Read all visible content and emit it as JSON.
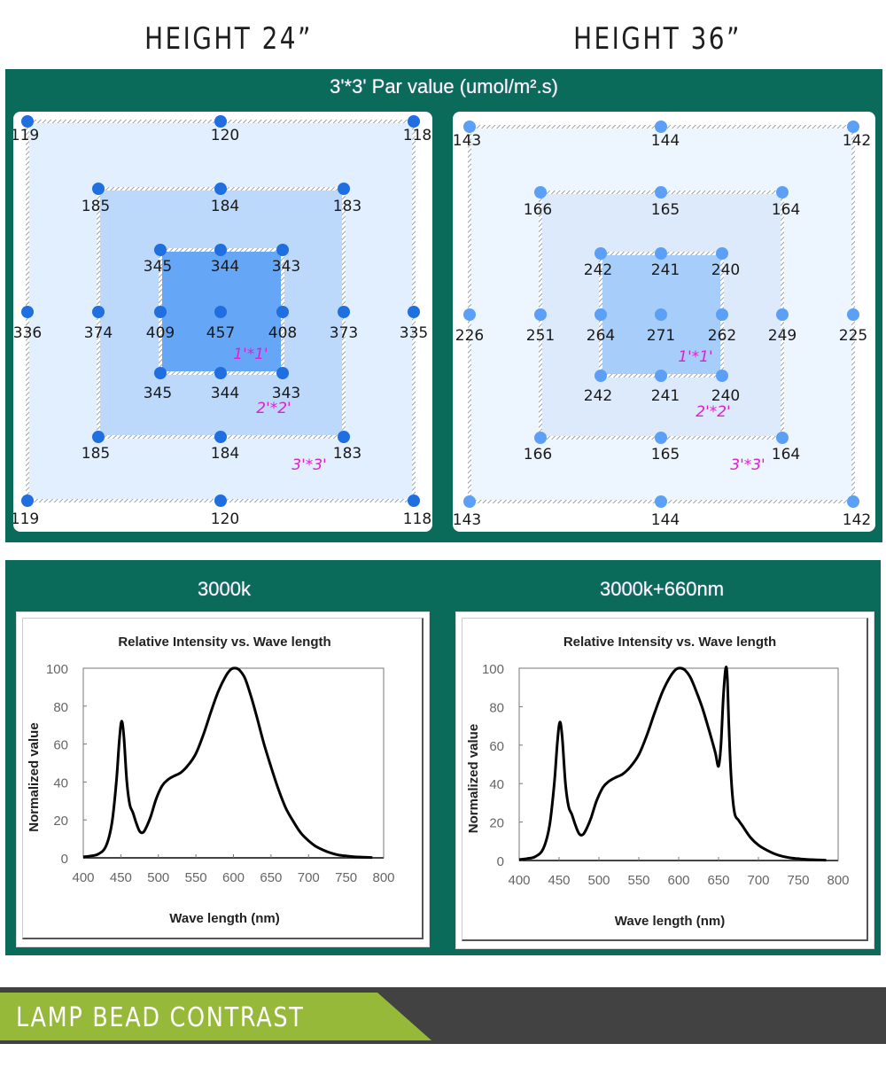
{
  "headings": {
    "left": "HEIGHT  24”",
    "right": "HEIGHT  36”"
  },
  "par_panel": {
    "title": "3'*3' Par value (umol/m².s)",
    "zone_labels": [
      "1'*1'",
      "2'*2'",
      "3'*3'"
    ],
    "colors": {
      "panel_bg": "#0a6b5b",
      "zone_label": "#e020d0"
    },
    "maps": [
      {
        "name": "height-24",
        "dot_color": "#1f6fe0",
        "fills": [
          "#e2efff",
          "#bcd8fb",
          "#65a6f7"
        ],
        "outer_top": [
          "119",
          "120",
          "118"
        ],
        "middle_top": [
          "185",
          "184",
          "183"
        ],
        "inner_top": [
          "345",
          "344",
          "343"
        ],
        "center_row": [
          "336",
          "374",
          "409",
          "457",
          "408",
          "373",
          "335"
        ],
        "inner_bottom": [
          "345",
          "344",
          "343"
        ],
        "middle_bottom": [
          "185",
          "184",
          "183"
        ],
        "outer_bottom": [
          "119",
          "120",
          "118"
        ]
      },
      {
        "name": "height-36",
        "dot_color": "#5ba0f6",
        "fills": [
          "#edf5ff",
          "#dceafc",
          "#a7cdfa"
        ],
        "outer_top": [
          "143",
          "144",
          "142"
        ],
        "middle_top": [
          "166",
          "165",
          "164"
        ],
        "inner_top": [
          "242",
          "241",
          "240"
        ],
        "center_row": [
          "226",
          "251",
          "264",
          "271",
          "262",
          "249",
          "225"
        ],
        "inner_bottom": [
          "242",
          "241",
          "240"
        ],
        "middle_bottom": [
          "166",
          "165",
          "164"
        ],
        "outer_bottom": [
          "143",
          "144",
          "142"
        ]
      }
    ]
  },
  "spectrum_panel": {
    "labels": [
      "3000k",
      "3000k+660nm"
    ]
  },
  "chart_data": [
    {
      "type": "line",
      "title": "Relative Intensity vs. Wave length",
      "xlabel": "Wave length (nm)",
      "ylabel": "Normalized value",
      "xlim": [
        400,
        800
      ],
      "ylim": [
        0,
        100
      ],
      "xticks": [
        "400",
        "450",
        "500",
        "550",
        "600",
        "650",
        "700",
        "750",
        "800"
      ],
      "yticks": [
        "0",
        "20",
        "40",
        "60",
        "80",
        "100"
      ],
      "grid": false,
      "series": [
        {
          "name": "3000k",
          "x": [
            400,
            410,
            420,
            430,
            438,
            444,
            448,
            451,
            454,
            458,
            462,
            466,
            470,
            475,
            480,
            485,
            490,
            497,
            505,
            512,
            520,
            530,
            540,
            550,
            560,
            570,
            580,
            590,
            597,
            603,
            608,
            615,
            622,
            630,
            640,
            650,
            660,
            670,
            680,
            690,
            700,
            710,
            720,
            730,
            740,
            750,
            760,
            770,
            785
          ],
          "y": [
            0.5,
            1,
            2,
            6,
            18,
            40,
            62,
            72,
            64,
            40,
            28,
            24,
            19,
            14,
            13.5,
            17,
            22,
            31,
            38,
            41,
            43,
            45,
            49,
            55,
            65,
            77,
            88,
            96,
            99.5,
            100,
            99,
            95,
            87,
            76,
            61,
            48,
            36,
            26,
            19,
            13,
            9,
            6,
            4,
            2.5,
            1.5,
            1,
            0.6,
            0.4,
            0.2
          ]
        }
      ]
    },
    {
      "type": "line",
      "title": "Relative Intensity vs. Wave length",
      "xlabel": "Wave length (nm)",
      "ylabel": "Normalized value",
      "xlim": [
        400,
        800
      ],
      "ylim": [
        0,
        100
      ],
      "xticks": [
        "400",
        "450",
        "500",
        "550",
        "600",
        "650",
        "700",
        "750",
        "800"
      ],
      "yticks": [
        "0",
        "20",
        "40",
        "60",
        "80",
        "100"
      ],
      "grid": false,
      "series": [
        {
          "name": "3000k+660nm",
          "x": [
            400,
            410,
            420,
            430,
            438,
            444,
            448,
            451,
            454,
            458,
            462,
            466,
            470,
            475,
            480,
            485,
            490,
            497,
            505,
            512,
            520,
            530,
            540,
            550,
            560,
            570,
            580,
            590,
            597,
            603,
            608,
            615,
            622,
            630,
            640,
            646,
            650,
            653,
            656,
            659,
            661,
            663,
            666,
            670,
            675,
            680,
            690,
            700,
            710,
            720,
            730,
            740,
            750,
            760,
            770,
            785
          ],
          "y": [
            0.5,
            1,
            2,
            6,
            18,
            40,
            62,
            72,
            64,
            40,
            28,
            24,
            19,
            14,
            13.5,
            17,
            22,
            31,
            38,
            41,
            43,
            45,
            49,
            55,
            65,
            77,
            88,
            96,
            99.5,
            100,
            99,
            95,
            88,
            79,
            65,
            56,
            49,
            60,
            85,
            100,
            95,
            70,
            42,
            25,
            21,
            18,
            12,
            8,
            5.5,
            3.5,
            2.2,
            1.4,
            0.9,
            0.6,
            0.4,
            0.2
          ]
        }
      ]
    }
  ],
  "banner": {
    "label": "LAMP BEAD CONTRAST",
    "colors": {
      "bar": "#424242",
      "tag": "#96b93a"
    }
  }
}
